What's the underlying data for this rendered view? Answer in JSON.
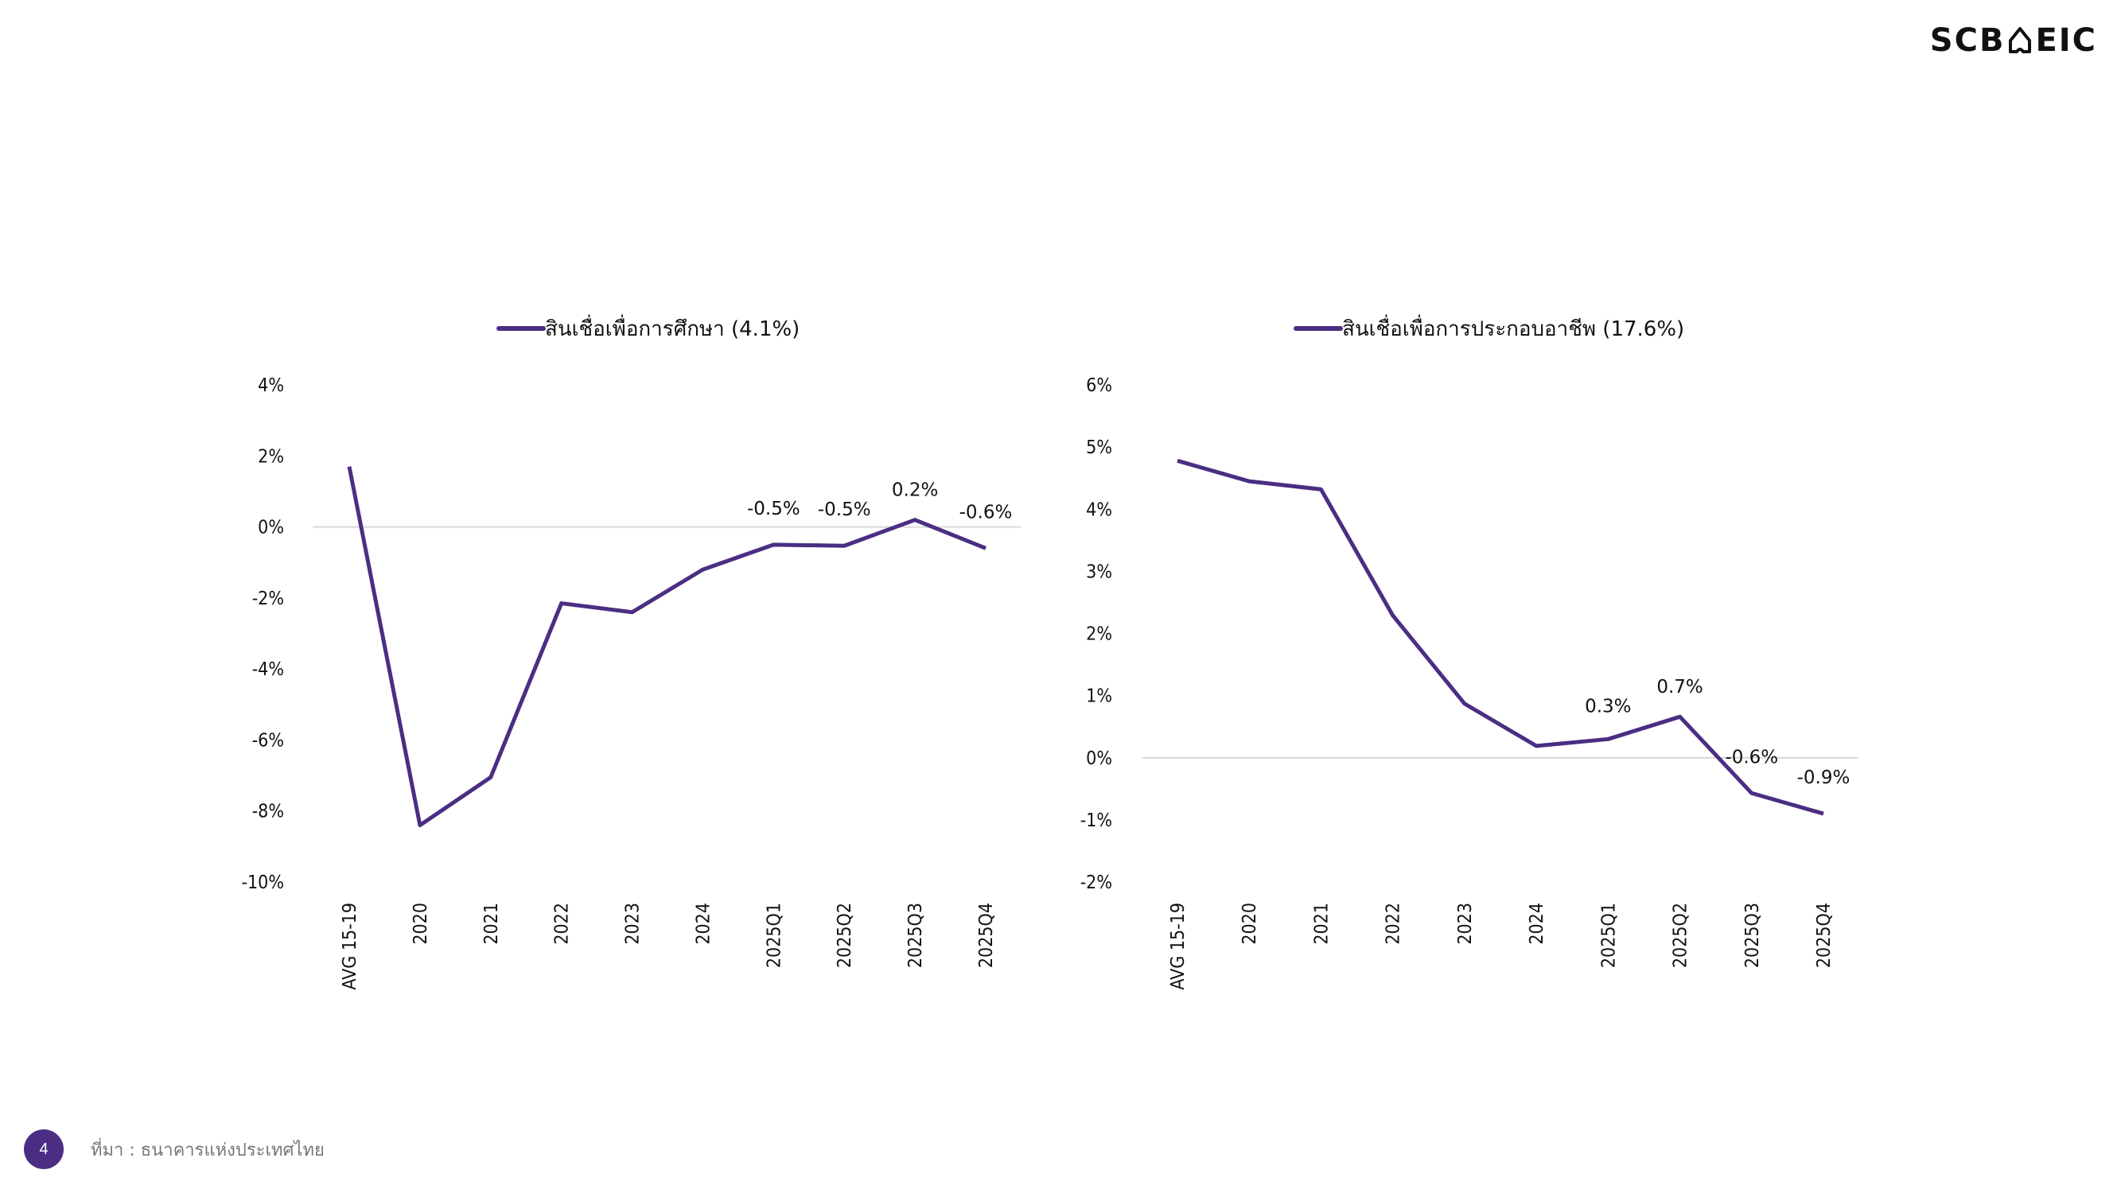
{
  "logo": {
    "text": "SCB EIC",
    "left": "SCB",
    "right": "EIC"
  },
  "footer": {
    "page_number": "4",
    "source": "ที่มา : ธนาคารแห่งประเทศไทย"
  },
  "colors": {
    "line": "#4B2E83",
    "zero_line": "#D9D9D9",
    "page_badge": "#4B2E83"
  },
  "chart_data": [
    {
      "type": "line",
      "legend": "สินเชื่อเพื่อการศึกษา (4.1%)",
      "legend_placement": "top",
      "categories": [
        "AVG 15-19",
        "2020",
        "2021",
        "2022",
        "2023",
        "2024",
        "2025Q1",
        "2025Q2",
        "2025Q3",
        "2025Q4"
      ],
      "values": [
        1.7,
        -8.4,
        -7.05,
        -2.15,
        -2.4,
        -1.2,
        -0.5,
        -0.53,
        0.2,
        -0.6
      ],
      "data_labels": [
        null,
        null,
        null,
        null,
        null,
        null,
        "-0.5%",
        "-0.5%",
        "0.2%",
        "-0.6%"
      ],
      "ylim": [
        -10,
        4
      ],
      "yticks": [
        4,
        2,
        0,
        -2,
        -4,
        -6,
        -8,
        -10
      ],
      "ytick_labels": [
        "4%",
        "2%",
        "0%",
        "-2%",
        "-4%",
        "-6%",
        "-8%",
        "-10%"
      ],
      "grid": false
    },
    {
      "type": "line",
      "legend": "สินเชื่อเพื่อการประกอบอาชีพ (17.6%)",
      "legend_placement": "top",
      "categories": [
        "AVG 15-19",
        "2020",
        "2021",
        "2022",
        "2023",
        "2024",
        "2025Q1",
        "2025Q2",
        "2025Q3",
        "2025Q4"
      ],
      "values": [
        4.78,
        4.45,
        4.32,
        2.29,
        0.87,
        0.19,
        0.3,
        0.66,
        -0.57,
        -0.9
      ],
      "data_labels": [
        null,
        null,
        null,
        null,
        null,
        null,
        "0.3%",
        "0.7%",
        "-0.6%",
        "-0.9%"
      ],
      "ylim": [
        -2,
        6
      ],
      "yticks": [
        6,
        5,
        4,
        3,
        2,
        1,
        0,
        -1,
        -2
      ],
      "ytick_labels": [
        "6%",
        "5%",
        "4%",
        "3%",
        "2%",
        "1%",
        "0%",
        "-1%",
        "-2%"
      ],
      "grid": false
    }
  ]
}
